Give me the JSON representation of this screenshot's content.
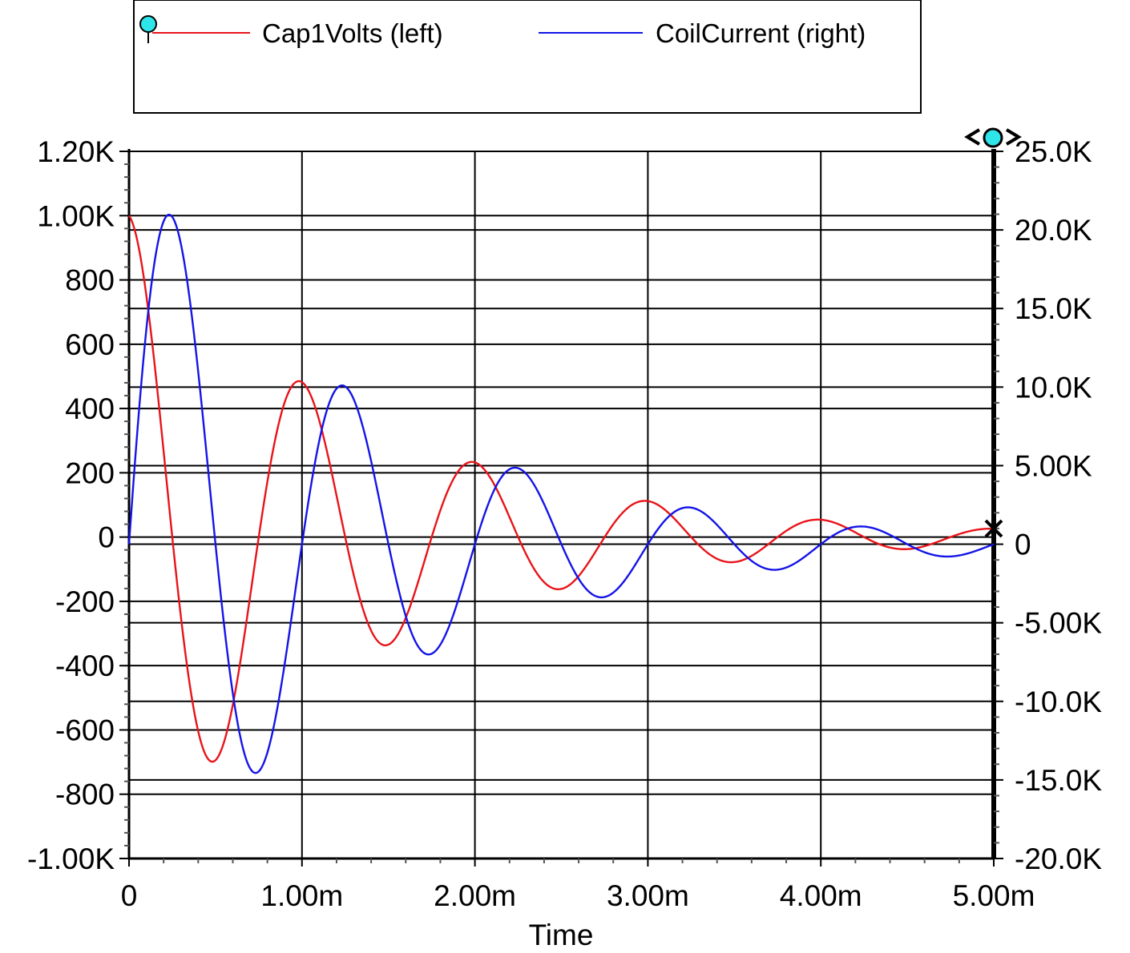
{
  "chart_data": {
    "type": "line",
    "xlabel": "Time",
    "x_tick_labels": [
      "0",
      "1.00m",
      "2.00m",
      "3.00m",
      "4.00m",
      "5.00m"
    ],
    "x_ticks": [
      0,
      0.001,
      0.002,
      0.003,
      0.004,
      0.005
    ],
    "xlim": [
      0,
      0.005
    ],
    "left_axis": {
      "ylim": [
        -1000,
        1200
      ],
      "ticks": [
        -1000,
        -800,
        -600,
        -400,
        -200,
        0,
        200,
        400,
        600,
        800,
        1000,
        1200
      ],
      "tick_labels": [
        "-1.00K",
        "-800",
        "-600",
        "-400",
        "-200",
        "0",
        "200",
        "400",
        "600",
        "800",
        "1.00K",
        "1.20K"
      ]
    },
    "right_axis": {
      "ylim": [
        -20000,
        25000
      ],
      "ticks": [
        -20000,
        -15000,
        -10000,
        -5000,
        0,
        5000,
        10000,
        15000,
        20000,
        25000
      ],
      "tick_labels": [
        "-20.0K",
        "-15.0K",
        "-10.0K",
        "-5.00K",
        "0",
        "5.00K",
        "10.0K",
        "15.0K",
        "20.0K",
        "25.0K"
      ]
    },
    "grid": true,
    "legend_placement": "top",
    "series": [
      {
        "name": "Cap1Volts (left)",
        "axis": "left",
        "color": "#e8141a",
        "model": {
          "amplitude": 1000,
          "decay_per_s": 730,
          "frequency_hz": 1000,
          "phase": 1.5708
        }
      },
      {
        "name": "CoilCurrent (right)",
        "axis": "right",
        "color": "#1414e8",
        "model": {
          "amplitude": 25000,
          "decay_per_s": 730,
          "frequency_hz": 1000,
          "phase": 0
        }
      }
    ]
  }
}
